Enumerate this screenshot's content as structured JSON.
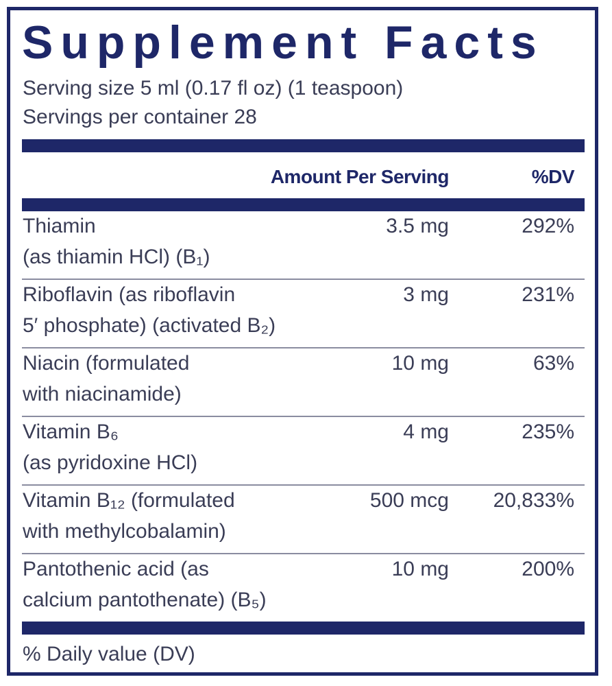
{
  "title": "Supplement Facts",
  "serving": [
    "Serving size 5 ml (0.17 fl oz) (1 teaspoon)",
    "Servings per container 28"
  ],
  "header": {
    "amount": "Amount Per Serving",
    "dv": "%DV"
  },
  "rows": [
    {
      "name": [
        "Thiamin",
        "(as thiamin HCl) (B₁)"
      ],
      "amount": "3.5 mg",
      "dv": "292%"
    },
    {
      "name": [
        "Riboflavin (as riboflavin",
        "5′ phosphate) (activated B₂)"
      ],
      "amount": "3 mg",
      "dv": "231%"
    },
    {
      "name": [
        "Niacin (formulated",
        "with niacinamide)"
      ],
      "amount": "10 mg",
      "dv": "63%"
    },
    {
      "name": [
        "Vitamin B₆",
        "(as pyridoxine HCl)"
      ],
      "amount": "4 mg",
      "dv": "235%"
    },
    {
      "name": [
        "Vitamin B₁₂ (formulated",
        "with methylcobalamin)"
      ],
      "amount": "500 mcg",
      "dv": "20,833%"
    },
    {
      "name": [
        "Pantothenic acid (as",
        "calcium pantothenate) (B₅)"
      ],
      "amount": "10 mg",
      "dv": "200%"
    }
  ],
  "footer": "% Daily value (DV)"
}
